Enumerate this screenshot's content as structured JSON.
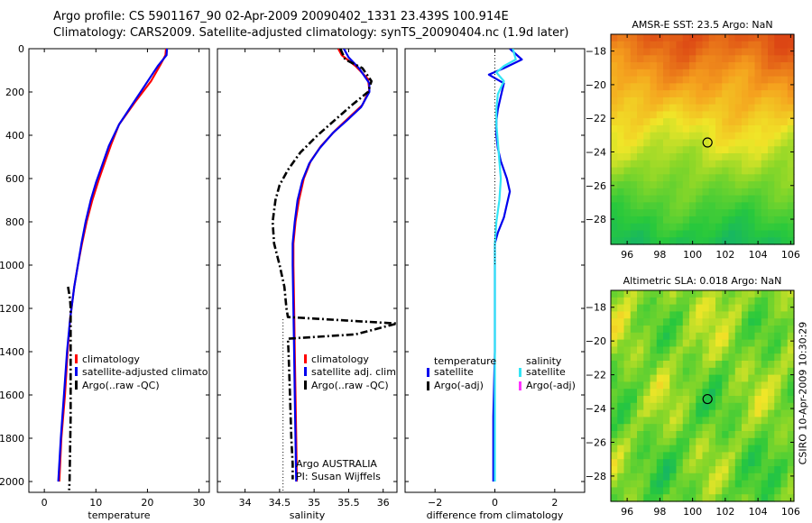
{
  "header": {
    "line1": "Argo profile: CS 5901167_90 02-Apr-2009 20090402_1331 23.439S 100.914E",
    "line2": "Climatology: CARS2009. Satellite-adjusted climatology: synTS_20090404.nc (1.9d later)"
  },
  "credit": "CSIRO 10-Apr-2009 10:30:29",
  "colors": {
    "red": "#ff0000",
    "blue": "#0000ee",
    "cyan": "#33e5f5",
    "black": "#000000",
    "magenta": "#ff33ff"
  },
  "depth_axis": {
    "range": [
      0,
      2050
    ],
    "ticks": [
      0,
      200,
      400,
      600,
      800,
      1000,
      1200,
      1400,
      1600,
      1800,
      2000
    ]
  },
  "chart_data": [
    {
      "type": "line",
      "name": "temperature",
      "xlabel": "temperature",
      "xlim": [
        -3,
        32
      ],
      "xticks": [
        0,
        10,
        20,
        30
      ],
      "series": [
        {
          "name": "climatology",
          "color": "red",
          "points": [
            [
              23.6,
              0
            ],
            [
              23.5,
              30
            ],
            [
              22.5,
              75
            ],
            [
              20.7,
              150
            ],
            [
              17.5,
              250
            ],
            [
              14.5,
              350
            ],
            [
              13,
              440
            ],
            [
              11.8,
              520
            ],
            [
              10.5,
              610
            ],
            [
              9.3,
              700
            ],
            [
              8.2,
              800
            ],
            [
              7.3,
              900
            ],
            [
              6.5,
              1000
            ],
            [
              5.8,
              1100
            ],
            [
              5,
              1250
            ],
            [
              4.5,
              1400
            ],
            [
              4,
              1600
            ],
            [
              3.3,
              1800
            ],
            [
              2.9,
              2000
            ]
          ]
        },
        {
          "name": "satellite-adjusted climatology",
          "color": "blue",
          "points": [
            [
              23.8,
              0
            ],
            [
              23.7,
              30
            ],
            [
              22,
              80
            ],
            [
              19.5,
              170
            ],
            [
              17,
              260
            ],
            [
              14.5,
              350
            ],
            [
              12.5,
              450
            ],
            [
              11.2,
              540
            ],
            [
              10,
              620
            ],
            [
              9,
              700
            ],
            [
              8,
              800
            ],
            [
              7.2,
              900
            ],
            [
              6.5,
              1000
            ],
            [
              5.8,
              1100
            ],
            [
              5,
              1250
            ],
            [
              4.4,
              1400
            ],
            [
              3.8,
              1600
            ],
            [
              3.2,
              1800
            ],
            [
              2.7,
              2000
            ]
          ]
        },
        {
          "name": "Argo(..raw -QC)",
          "color": "black",
          "dash": "dashdot",
          "points": [
            [
              4.6,
              1100
            ],
            [
              4.8,
              1130
            ],
            [
              5,
              1160
            ],
            [
              5.1,
              1200
            ],
            [
              5.1,
              1400
            ],
            [
              5.1,
              1700
            ],
            [
              4.9,
              2000
            ],
            [
              4.8,
              2040
            ]
          ]
        }
      ],
      "legend": [
        "climatology",
        "satellite-adjusted climatology",
        "Argo(..raw -QC)"
      ]
    },
    {
      "type": "line",
      "name": "salinity",
      "xlabel": "salinity",
      "xlim": [
        33.6,
        36.2
      ],
      "xticks": [
        34,
        34.5,
        35,
        35.5,
        36
      ],
      "series": [
        {
          "name": "climatology",
          "color": "red",
          "points": [
            [
              35.35,
              0
            ],
            [
              35.4,
              30
            ],
            [
              35.6,
              80
            ],
            [
              35.78,
              140
            ],
            [
              35.8,
              190
            ],
            [
              35.7,
              260
            ],
            [
              35.5,
              320
            ],
            [
              35.3,
              380
            ],
            [
              35.1,
              450
            ],
            [
              34.95,
              520
            ],
            [
              34.85,
              600
            ],
            [
              34.78,
              700
            ],
            [
              34.73,
              800
            ],
            [
              34.7,
              900
            ],
            [
              34.7,
              1000
            ],
            [
              34.71,
              1200
            ],
            [
              34.72,
              1400
            ],
            [
              34.73,
              1600
            ],
            [
              34.74,
              1800
            ],
            [
              34.75,
              2000
            ]
          ]
        },
        {
          "name": "satellite adj. clim.",
          "color": "blue",
          "points": [
            [
              35.43,
              0
            ],
            [
              35.5,
              40
            ],
            [
              35.65,
              90
            ],
            [
              35.8,
              160
            ],
            [
              35.8,
              200
            ],
            [
              35.68,
              270
            ],
            [
              35.48,
              330
            ],
            [
              35.27,
              390
            ],
            [
              35.08,
              460
            ],
            [
              34.93,
              530
            ],
            [
              34.83,
              610
            ],
            [
              34.76,
              700
            ],
            [
              34.72,
              800
            ],
            [
              34.69,
              900
            ],
            [
              34.69,
              1000
            ],
            [
              34.7,
              1200
            ],
            [
              34.71,
              1400
            ],
            [
              34.72,
              1600
            ],
            [
              34.73,
              1800
            ],
            [
              34.74,
              2000
            ]
          ]
        },
        {
          "name": "Argo(..raw -QC)",
          "color": "black",
          "dash": "dashdot",
          "points": [
            [
              35.38,
              0
            ],
            [
              35.45,
              50
            ],
            [
              35.7,
              90
            ],
            [
              35.83,
              150
            ],
            [
              35.78,
              200
            ],
            [
              35.55,
              260
            ],
            [
              35.3,
              330
            ],
            [
              35.05,
              400
            ],
            [
              34.8,
              480
            ],
            [
              34.62,
              560
            ],
            [
              34.5,
              630
            ],
            [
              34.44,
              700
            ],
            [
              34.4,
              800
            ],
            [
              34.42,
              900
            ],
            [
              34.5,
              1000
            ],
            [
              34.57,
              1100
            ],
            [
              34.6,
              1200
            ],
            [
              34.62,
              1240
            ],
            [
              36.2,
              1270
            ],
            [
              35.6,
              1320
            ],
            [
              34.62,
              1340
            ],
            [
              34.63,
              1400
            ],
            [
              34.65,
              1600
            ],
            [
              34.67,
              1800
            ],
            [
              34.69,
              1920
            ],
            [
              34.69,
              1990
            ]
          ]
        },
        {
          "name": "reference",
          "color": "black",
          "dash": "dotted",
          "points": [
            [
              34.55,
              1250
            ],
            [
              34.55,
              2050
            ]
          ]
        }
      ],
      "legend": [
        "climatology",
        "satellite adj. clim.",
        "Argo(..raw -QC)"
      ],
      "annotations": [
        "Argo AUSTRALIA",
        "PI: Susan Wijffels"
      ]
    },
    {
      "type": "line",
      "name": "difference",
      "xlabel": "difference from climatology",
      "xlim": [
        -3,
        3
      ],
      "xticks": [
        -2,
        0,
        2
      ],
      "series": [
        {
          "name": "temperature satellite",
          "color": "blue",
          "points": [
            [
              0.5,
              0
            ],
            [
              0.9,
              50
            ],
            [
              0.3,
              90
            ],
            [
              -0.2,
              120
            ],
            [
              0.3,
              160
            ],
            [
              0.2,
              220
            ],
            [
              0.1,
              280
            ],
            [
              0.05,
              330
            ],
            [
              0.05,
              400
            ],
            [
              0.1,
              460
            ],
            [
              0.2,
              520
            ],
            [
              0.4,
              600
            ],
            [
              0.5,
              660
            ],
            [
              0.4,
              720
            ],
            [
              0.3,
              780
            ],
            [
              0.1,
              850
            ],
            [
              0,
              900
            ],
            [
              0,
              1000
            ],
            [
              0,
              1400
            ],
            [
              -0.05,
              1700
            ],
            [
              -0.05,
              2000
            ]
          ]
        },
        {
          "name": "salinity satellite",
          "color": "cyan",
          "points": [
            [
              0.6,
              0
            ],
            [
              0.7,
              50
            ],
            [
              0.3,
              80
            ],
            [
              0.05,
              110
            ],
            [
              0.3,
              150
            ],
            [
              0.1,
              210
            ],
            [
              0.05,
              280
            ],
            [
              0.05,
              350
            ],
            [
              0.1,
              430
            ],
            [
              0.15,
              520
            ],
            [
              0.2,
              600
            ],
            [
              0.15,
              700
            ],
            [
              0.05,
              800
            ],
            [
              0,
              900
            ],
            [
              0,
              1000
            ],
            [
              0,
              1400
            ],
            [
              0,
              1700
            ],
            [
              0,
              2000
            ]
          ]
        },
        {
          "name": "zero line",
          "color": "black",
          "dash": "dotted",
          "points": [
            [
              0,
              0
            ],
            [
              0,
              1000
            ]
          ]
        }
      ],
      "legend_headers": [
        "temperature",
        "salinity"
      ],
      "legend_temperature": [
        "satellite",
        "Argo(-adj)"
      ],
      "legend_salinity": [
        "satellite",
        "Argo(-adj)"
      ]
    },
    {
      "type": "heatmap",
      "name": "sst-map",
      "title": "AMSR-E SST: 23.5 Argo: NaN",
      "xlim": [
        95,
        106.2
      ],
      "ylim": [
        -29.5,
        -17
      ],
      "xticks": [
        96,
        98,
        100,
        102,
        104,
        106
      ],
      "yticks": [
        -18,
        -20,
        -22,
        -24,
        -26,
        -28
      ],
      "marker": {
        "lon": 100.914,
        "lat": -23.439
      }
    },
    {
      "type": "heatmap",
      "name": "sla-map",
      "title": "Altimetric SLA: 0.018 Argo: NaN",
      "xlim": [
        95,
        106.2
      ],
      "ylim": [
        -29.5,
        -17
      ],
      "xticks": [
        96,
        98,
        100,
        102,
        104,
        106
      ],
      "yticks": [
        -18,
        -20,
        -22,
        -24,
        -26,
        -28
      ],
      "marker": {
        "lon": 100.914,
        "lat": -23.439
      }
    }
  ]
}
